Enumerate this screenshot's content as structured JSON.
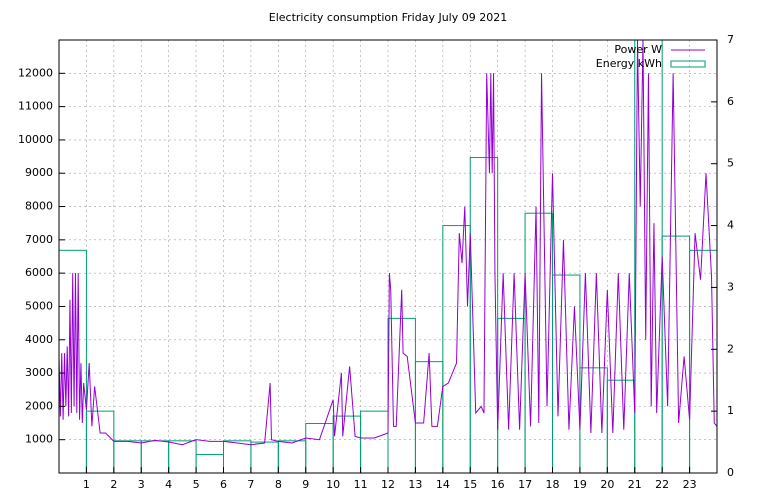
{
  "chart_data": {
    "type": "line",
    "title": "Electricity consumption Friday July 09 2021",
    "xlim": [
      0,
      24
    ],
    "xticks": [
      1,
      2,
      3,
      4,
      5,
      6,
      7,
      8,
      9,
      10,
      11,
      12,
      13,
      14,
      15,
      16,
      17,
      18,
      19,
      20,
      21,
      22,
      23
    ],
    "ylim": [
      0,
      13000
    ],
    "yticks": [
      1000,
      2000,
      3000,
      4000,
      5000,
      6000,
      7000,
      8000,
      9000,
      10000,
      11000,
      12000
    ],
    "y2lim": [
      0,
      7
    ],
    "y2ticks": [
      0,
      1,
      2,
      3,
      4,
      5,
      6,
      7
    ],
    "grid": true,
    "legend": "top-right",
    "series": [
      {
        "name": "Power W",
        "color": "#9400d3",
        "type": "line",
        "x": [
          0,
          0.05,
          0.1,
          0.15,
          0.2,
          0.25,
          0.3,
          0.35,
          0.4,
          0.45,
          0.5,
          0.55,
          0.6,
          0.65,
          0.7,
          0.75,
          0.8,
          0.85,
          0.9,
          1.0,
          1.1,
          1.2,
          1.3,
          1.5,
          1.7,
          2.0,
          2.5,
          3.0,
          3.5,
          4.0,
          4.5,
          5.0,
          5.5,
          6.0,
          6.5,
          7.0,
          7.5,
          7.7,
          7.75,
          8.0,
          8.5,
          9.0,
          9.5,
          10.0,
          10.05,
          10.3,
          10.35,
          10.6,
          10.8,
          11.0,
          11.5,
          12.0,
          12.05,
          12.1,
          12.2,
          12.3,
          12.5,
          12.55,
          12.7,
          13.0,
          13.3,
          13.5,
          13.6,
          13.8,
          14.0,
          14.2,
          14.5,
          14.6,
          14.7,
          14.8,
          14.9,
          15.0,
          15.2,
          15.4,
          15.5,
          15.6,
          15.7,
          15.75,
          15.8,
          15.85,
          15.9,
          16.0,
          16.2,
          16.4,
          16.6,
          16.8,
          17.0,
          17.2,
          17.4,
          17.5,
          17.6,
          17.8,
          18.0,
          18.2,
          18.4,
          18.6,
          18.8,
          19.0,
          19.2,
          19.4,
          19.6,
          19.8,
          20.0,
          20.2,
          20.4,
          20.6,
          20.8,
          21.0,
          21.1,
          21.2,
          21.3,
          21.4,
          21.5,
          21.6,
          21.7,
          21.8,
          22.0,
          22.2,
          22.4,
          22.6,
          22.8,
          23.0,
          23.2,
          23.4,
          23.6,
          23.8,
          23.9,
          24.0
        ],
        "values": [
          3500,
          1700,
          3600,
          1600,
          3600,
          2000,
          3800,
          1700,
          5200,
          1800,
          6000,
          2000,
          6000,
          1800,
          6000,
          1600,
          3300,
          1500,
          2700,
          1900,
          3300,
          1400,
          2600,
          1200,
          1200,
          950,
          950,
          900,
          980,
          930,
          850,
          1000,
          950,
          950,
          900,
          850,
          900,
          2700,
          1000,
          950,
          900,
          1050,
          1000,
          2200,
          1100,
          3000,
          1100,
          3200,
          1100,
          1050,
          1050,
          1200,
          6000,
          5500,
          1400,
          1400,
          5500,
          3600,
          3500,
          1500,
          1500,
          3600,
          1400,
          1400,
          2600,
          2700,
          3300,
          7200,
          6300,
          8000,
          5000,
          7200,
          1800,
          2000,
          1800,
          12000,
          9000,
          12000,
          9000,
          12000,
          6000,
          1300,
          6000,
          1300,
          6000,
          1300,
          6000,
          1400,
          8000,
          1500,
          12000,
          2000,
          9000,
          1700,
          7000,
          1300,
          5000,
          1300,
          6000,
          1200,
          6000,
          1200,
          5500,
          1200,
          6000,
          1300,
          6000,
          1800,
          13000,
          8000,
          13000,
          4000,
          12000,
          2000,
          7500,
          1800,
          6500,
          2000,
          12000,
          1500,
          3500,
          1600,
          7200,
          5800,
          9000,
          5900,
          1500,
          1400
        ]
      },
      {
        "name": "Energy kWh",
        "color": "#009e73",
        "type": "boxes",
        "axis": "y2",
        "x": [
          0,
          1,
          2,
          3,
          4,
          5,
          6,
          7,
          8,
          9,
          10,
          11,
          12,
          13,
          14,
          15,
          16,
          17,
          18,
          19,
          20,
          21,
          22,
          23
        ],
        "values": [
          3.6,
          1.0,
          0.52,
          0.52,
          0.52,
          0.3,
          0.52,
          0.5,
          0.52,
          0.8,
          0.92,
          1.0,
          2.5,
          1.8,
          4.0,
          5.1,
          2.5,
          4.2,
          3.2,
          1.7,
          1.5,
          7.0,
          3.83,
          3.6
        ]
      }
    ]
  }
}
